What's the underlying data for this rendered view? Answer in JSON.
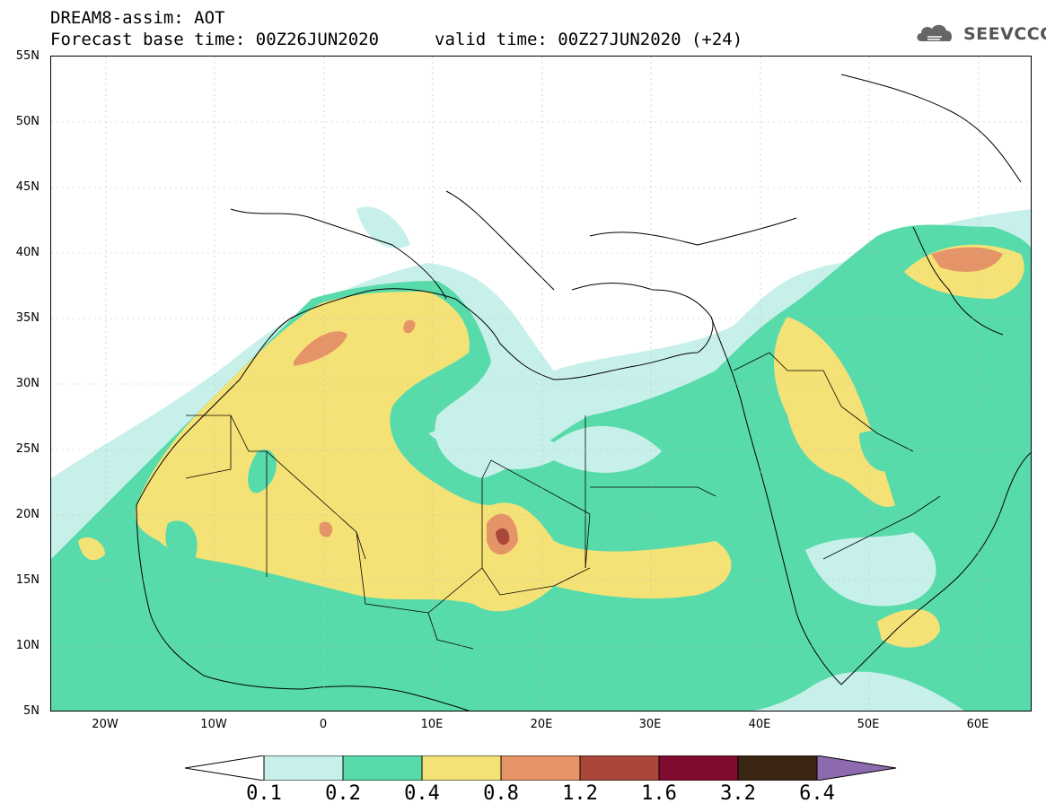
{
  "header": {
    "title": "DREAM8-assim: AOT",
    "base_time": "Forecast base time: 00Z26JUN2020",
    "valid_time": "valid time: 00Z27JUN2020 (+24)"
  },
  "logo": {
    "text": "SEEVCCC",
    "icon": "cloud-icon"
  },
  "map": {
    "lat_labels": [
      "55N",
      "50N",
      "45N",
      "40N",
      "35N",
      "30N",
      "25N",
      "20N",
      "15N",
      "10N",
      "5N"
    ],
    "lon_labels": [
      "20W",
      "10W",
      "0",
      "10E",
      "20E",
      "30E",
      "40E",
      "50E",
      "60E"
    ],
    "projection": "lat-lon",
    "extent": {
      "lon": [
        -25,
        65
      ],
      "lat": [
        5,
        55
      ]
    }
  },
  "legend": {
    "levels": [
      "0.1",
      "0.2",
      "0.4",
      "0.8",
      "1.2",
      "1.6",
      "3.2",
      "6.4"
    ],
    "colors": [
      "#c8f0ea",
      "#58dbab",
      "#f5e276",
      "#e59468",
      "#a9473a",
      "#7f0b2e",
      "#3b2613",
      "#8e6bae"
    ]
  }
}
